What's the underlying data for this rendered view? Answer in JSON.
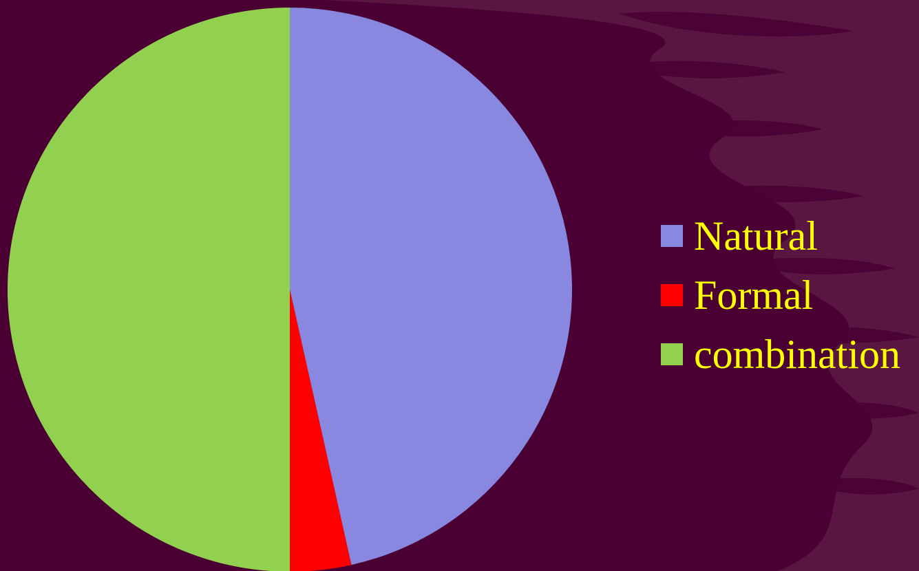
{
  "slide": {
    "background_color": "#4a0033",
    "swirl_color": "#5a1a44",
    "label_color": "#ffff00"
  },
  "chart_data": {
    "type": "pie",
    "title": "",
    "start_angle_deg": 0,
    "direction": "clockwise",
    "legend_position": "right",
    "slices": [
      {
        "name": "Natural",
        "value": 46.5,
        "color": "#8888e0"
      },
      {
        "name": "Formal",
        "value": 3.5,
        "color": "#ff0000"
      },
      {
        "name": "combination",
        "value": 50,
        "color": "#92d050"
      }
    ]
  }
}
